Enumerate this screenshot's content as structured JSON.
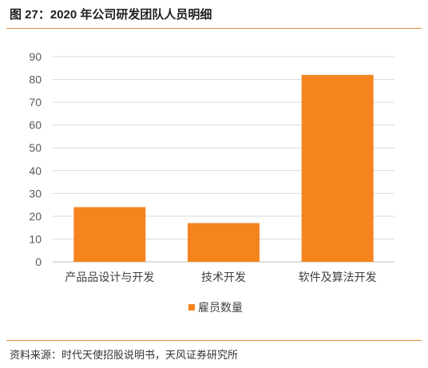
{
  "figure": {
    "title": "图 27：2020 年公司研发团队人员明细",
    "source": "资料来源：时代天使招股说明书，天风证券研究所"
  },
  "chart_data": {
    "type": "bar",
    "categories": [
      "产品品设计与开发",
      "技术开发",
      "软件及算法开发"
    ],
    "series": [
      {
        "name": "雇员数量",
        "values": [
          24,
          17,
          82
        ],
        "color": "#f5841f"
      }
    ],
    "ylim": [
      0,
      90
    ],
    "yticks": [
      0,
      10,
      20,
      30,
      40,
      50,
      60,
      70,
      80,
      90
    ],
    "grid": true,
    "legend": "bottom"
  }
}
